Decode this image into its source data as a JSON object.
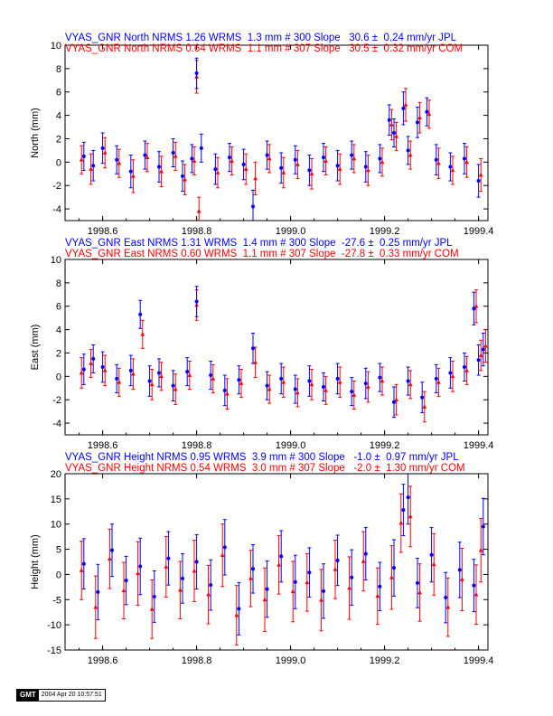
{
  "colors": {
    "series_a": "#0000ff",
    "series_b": "#ff0000",
    "axis": "#000000",
    "background": "#ffffff"
  },
  "footer": {
    "logo": "GMT",
    "timestamp": "2004 Apr 20 10:57:51"
  },
  "chart_data": [
    {
      "type": "scatter",
      "panel": "north",
      "header_lines": [
        "VYAS_GNR North NRMS 1.26 WRMS  1.3 mm # 300 Slope   30.6 ±  0.24 mm/yr JPL",
        "VYAS_GNR North NRMS 0.64 WRMS  1.1 mm # 307 Slope   30.5 ±  0.32 mm/yr COM"
      ],
      "ylabel": "North (mm)",
      "xlim": [
        1998.52,
        1999.42
      ],
      "ylim": [
        -5,
        10
      ],
      "xticks": [
        1998.6,
        1998.8,
        1999.0,
        1999.2,
        1999.4
      ],
      "xticklabels": [
        "1998.6",
        "1998.8",
        "1999.0",
        "1999.2",
        "1999.4"
      ],
      "yticks": [
        -4,
        -2,
        0,
        2,
        4,
        6,
        8,
        10
      ],
      "yticklabels": [
        "-4",
        "-2",
        "0",
        "2",
        "4",
        "6",
        "8",
        "10"
      ],
      "series": [
        {
          "marker": "circle",
          "x": [
            1998.56,
            1998.58,
            1998.6,
            1998.63,
            1998.66,
            1998.69,
            1998.72,
            1998.75,
            1998.77,
            1998.79,
            1998.8,
            1998.81,
            1998.84,
            1998.87,
            1998.9,
            1998.92,
            1998.95,
            1998.98,
            1999.01,
            1999.04,
            1999.07,
            1999.1,
            1999.13,
            1999.16,
            1999.19,
            1999.21,
            1999.22,
            1999.24,
            1999.25,
            1999.27,
            1999.29,
            1999.31,
            1999.34,
            1999.37,
            1999.4
          ],
          "y": [
            0.5,
            -0.3,
            1.2,
            0.2,
            -0.8,
            0.6,
            -0.4,
            0.8,
            -1.2,
            0.3,
            7.6,
            1.2,
            -0.6,
            0.4,
            -0.2,
            -3.8,
            0.6,
            -0.5,
            0.2,
            -0.7,
            0.4,
            -0.3,
            0.6,
            -0.4,
            0.3,
            3.6,
            2.5,
            4.6,
            1.0,
            3.4,
            4.3,
            0.2,
            -0.4,
            0.3,
            -1.6
          ],
          "err": [
            1.2,
            1.3,
            1.3,
            1.2,
            1.4,
            1.2,
            1.3,
            1.2,
            1.3,
            1.2,
            1.3,
            1.2,
            1.3,
            1.2,
            1.3,
            1.4,
            1.2,
            1.3,
            1.2,
            1.3,
            1.2,
            1.3,
            1.2,
            1.3,
            1.2,
            1.3,
            1.2,
            1.4,
            1.2,
            1.3,
            1.2,
            1.3,
            1.2,
            1.3,
            1.4
          ]
        },
        {
          "marker": "triangle",
          "x": [
            1998.555,
            1998.575,
            1998.605,
            1998.635,
            1998.665,
            1998.695,
            1998.725,
            1998.755,
            1998.775,
            1998.795,
            1998.8,
            1998.805,
            1998.845,
            1998.875,
            1998.905,
            1998.925,
            1998.955,
            1998.985,
            1999.015,
            1999.045,
            1999.075,
            1999.105,
            1999.135,
            1999.165,
            1999.195,
            1999.215,
            1999.225,
            1999.245,
            1999.255,
            1999.275,
            1999.295,
            1999.315,
            1999.345,
            1999.375,
            1999.405
          ],
          "y": [
            0.2,
            -0.6,
            0.8,
            -0.1,
            -1.2,
            0.4,
            -0.8,
            0.5,
            -1.5,
            0.1,
            7.3,
            -4.2,
            -0.9,
            0.1,
            -0.6,
            -1.4,
            0.3,
            -0.9,
            -0.2,
            -1.0,
            0.1,
            -0.6,
            0.3,
            -0.7,
            0.0,
            3.2,
            2.2,
            4.9,
            0.6,
            3.8,
            4.1,
            -0.1,
            -0.7,
            0.0,
            -1.1
          ],
          "err": [
            1.2,
            1.3,
            1.3,
            1.2,
            1.4,
            1.2,
            1.3,
            1.2,
            1.3,
            1.2,
            1.4,
            1.2,
            1.3,
            1.2,
            1.3,
            1.4,
            1.2,
            1.3,
            1.2,
            1.3,
            1.2,
            1.3,
            1.2,
            1.3,
            1.2,
            1.3,
            1.2,
            1.4,
            1.2,
            1.3,
            1.2,
            1.3,
            1.2,
            1.3,
            1.4
          ]
        }
      ]
    },
    {
      "type": "scatter",
      "panel": "east",
      "header_lines": [
        "VYAS_GNR East NRMS 1.31 WRMS  1.4 mm # 300 Slope  -27.6 ±  0.25 mm/yr JPL",
        "VYAS_GNR East NRMS 0.60 WRMS  1.1 mm # 307 Slope  -27.8 ±  0.33 mm/yr COM"
      ],
      "ylabel": "East (mm)",
      "xlim": [
        1998.52,
        1999.42
      ],
      "ylim": [
        -5,
        10
      ],
      "xticks": [
        1998.6,
        1998.8,
        1999.0,
        1999.2,
        1999.4
      ],
      "xticklabels": [
        "1998.6",
        "1998.8",
        "1999.0",
        "1999.2",
        "1999.4"
      ],
      "yticks": [
        -4,
        -2,
        0,
        2,
        4,
        6,
        8,
        10
      ],
      "yticklabels": [
        "-4",
        "-2",
        "0",
        "2",
        "4",
        "6",
        "8",
        "10"
      ],
      "series": [
        {
          "marker": "circle",
          "x": [
            1998.56,
            1998.58,
            1998.6,
            1998.63,
            1998.66,
            1998.68,
            1998.7,
            1998.72,
            1998.75,
            1998.78,
            1998.8,
            1998.83,
            1998.86,
            1998.89,
            1998.92,
            1998.95,
            1998.98,
            1999.01,
            1999.04,
            1999.07,
            1999.1,
            1999.13,
            1999.16,
            1999.19,
            1999.22,
            1999.25,
            1999.28,
            1999.31,
            1999.34,
            1999.37,
            1999.39,
            1999.4,
            1999.41
          ],
          "y": [
            0.6,
            1.5,
            0.8,
            -0.2,
            0.5,
            5.3,
            -0.4,
            0.3,
            -0.8,
            0.4,
            6.4,
            0.1,
            -1.2,
            -0.3,
            2.4,
            -0.8,
            -0.2,
            -1.1,
            -0.4,
            -0.9,
            -0.2,
            -1.3,
            -0.6,
            -0.1,
            -2.2,
            -0.4,
            -1.8,
            -0.2,
            0.3,
            0.8,
            5.8,
            1.4,
            2.3
          ],
          "err": [
            1.3,
            1.2,
            1.3,
            1.2,
            1.3,
            1.2,
            1.3,
            1.2,
            1.3,
            1.2,
            1.3,
            1.2,
            1.3,
            1.2,
            1.3,
            1.2,
            1.3,
            1.2,
            1.3,
            1.2,
            1.3,
            1.2,
            1.3,
            1.2,
            1.3,
            1.2,
            1.3,
            1.2,
            1.3,
            1.2,
            1.4,
            1.3,
            1.4
          ]
        },
        {
          "marker": "triangle",
          "x": [
            1998.555,
            1998.575,
            1998.605,
            1998.635,
            1998.665,
            1998.685,
            1998.705,
            1998.725,
            1998.755,
            1998.785,
            1998.8,
            1998.835,
            1998.865,
            1998.895,
            1998.925,
            1998.955,
            1998.985,
            1999.015,
            1999.045,
            1999.075,
            1999.105,
            1999.135,
            1999.165,
            1999.195,
            1999.225,
            1999.255,
            1999.285,
            1999.315,
            1999.345,
            1999.375,
            1999.395,
            1999.405,
            1999.415
          ],
          "y": [
            0.3,
            1.1,
            0.5,
            -0.5,
            0.2,
            3.6,
            -0.7,
            0.0,
            -1.1,
            0.1,
            6.1,
            -0.2,
            -1.5,
            -0.6,
            1.2,
            -1.1,
            -0.5,
            -1.4,
            -0.7,
            -1.2,
            -0.5,
            -1.6,
            -0.9,
            -0.4,
            -2.0,
            -0.7,
            -2.6,
            -0.5,
            0.0,
            0.5,
            6.0,
            1.8,
            2.6
          ],
          "err": [
            1.3,
            1.2,
            1.3,
            1.2,
            1.3,
            1.2,
            1.3,
            1.2,
            1.3,
            1.2,
            1.3,
            1.2,
            1.3,
            1.2,
            1.3,
            1.2,
            1.3,
            1.2,
            1.3,
            1.2,
            1.3,
            1.2,
            1.3,
            1.2,
            1.3,
            1.2,
            1.3,
            1.2,
            1.3,
            1.2,
            1.4,
            1.3,
            1.4
          ]
        }
      ]
    },
    {
      "type": "scatter",
      "panel": "height",
      "header_lines": [
        "VYAS_GNR Height NRMS 0.95 WRMS  3.9 mm # 300 Slope   -1.0 ±  0.97 mm/yr JPL",
        "VYAS_GNR Height NRMS 0.54 WRMS  3.0 mm # 307 Slope   -2.0 ±  1.30 mm/yr COM"
      ],
      "ylabel": "Height (mm)",
      "xlim": [
        1998.52,
        1999.42
      ],
      "ylim": [
        -15,
        20
      ],
      "xticks": [
        1998.6,
        1998.8,
        1999.0,
        1999.2,
        1999.4
      ],
      "xticklabels": [
        "1998.6",
        "1998.8",
        "1999.0",
        "1999.2",
        "1999.4"
      ],
      "yticks": [
        -15,
        -10,
        -5,
        0,
        5,
        10,
        15,
        20
      ],
      "yticklabels": [
        "-15",
        "-10",
        "-5",
        "0",
        "5",
        "10",
        "15",
        "20"
      ],
      "series": [
        {
          "marker": "circle",
          "x": [
            1998.56,
            1998.59,
            1998.62,
            1998.65,
            1998.68,
            1998.71,
            1998.74,
            1998.77,
            1998.8,
            1998.83,
            1998.86,
            1998.89,
            1998.92,
            1998.95,
            1998.98,
            1999.01,
            1999.04,
            1999.07,
            1999.1,
            1999.13,
            1999.16,
            1999.19,
            1999.22,
            1999.24,
            1999.25,
            1999.27,
            1999.3,
            1999.33,
            1999.36,
            1999.39,
            1999.41
          ],
          "y": [
            2.1,
            -3.5,
            4.8,
            -1.2,
            1.6,
            -4.4,
            3.2,
            -0.8,
            2.5,
            -2.1,
            5.4,
            -6.8,
            1.1,
            -2.9,
            3.6,
            -1.5,
            0.4,
            -3.3,
            2.8,
            -0.6,
            4.1,
            -2.4,
            1.3,
            12.8,
            15.3,
            -1.7,
            3.9,
            -4.6,
            0.9,
            -2.2,
            9.5
          ],
          "err": [
            5.0,
            5.5,
            5.2,
            4.8,
            5.6,
            5.1,
            5.3,
            4.9,
            5.4,
            5.0,
            5.5,
            5.2,
            4.8,
            5.6,
            5.1,
            5.3,
            4.9,
            5.4,
            5.0,
            5.5,
            5.2,
            4.8,
            5.6,
            5.1,
            5.3,
            4.9,
            5.4,
            5.0,
            5.5,
            5.2,
            5.6
          ]
        },
        {
          "marker": "triangle",
          "x": [
            1998.555,
            1998.585,
            1998.615,
            1998.645,
            1998.675,
            1998.705,
            1998.735,
            1998.765,
            1998.795,
            1998.825,
            1998.855,
            1998.885,
            1998.915,
            1998.945,
            1998.975,
            1999.005,
            1999.035,
            1999.065,
            1999.095,
            1999.125,
            1999.155,
            1999.185,
            1999.215,
            1999.235,
            1999.255,
            1999.275,
            1999.305,
            1999.335,
            1999.365,
            1999.395,
            1999.405
          ],
          "y": [
            0.8,
            -6.5,
            3.1,
            -3.2,
            0.2,
            -6.9,
            1.5,
            -3.1,
            0.7,
            -4.0,
            3.8,
            -8.1,
            -0.8,
            -5.0,
            1.9,
            -3.4,
            -1.6,
            -5.1,
            1.0,
            -2.7,
            2.6,
            -4.3,
            -0.6,
            10.2,
            11.5,
            -3.6,
            2.0,
            -6.5,
            -1.0,
            -4.0,
            4.8
          ],
          "err": [
            5.8,
            6.2,
            5.9,
            5.6,
            6.3,
            5.8,
            6.0,
            5.7,
            6.1,
            5.8,
            6.2,
            5.9,
            5.6,
            6.3,
            5.8,
            6.0,
            5.7,
            6.1,
            5.8,
            6.2,
            5.9,
            5.6,
            6.3,
            5.8,
            6.0,
            5.7,
            6.1,
            5.8,
            6.2,
            5.9,
            6.3
          ]
        }
      ]
    }
  ]
}
